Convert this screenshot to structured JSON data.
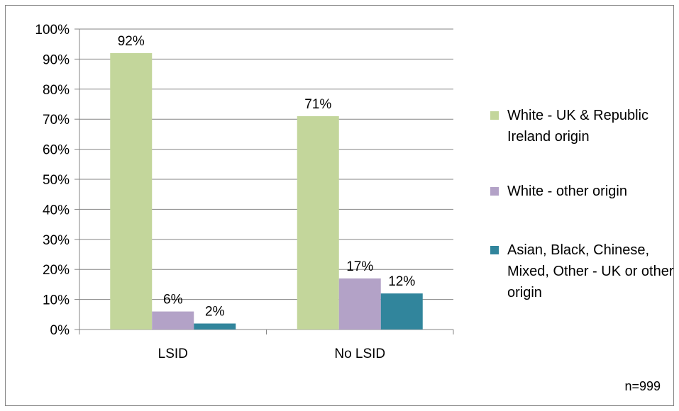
{
  "chart_data": {
    "type": "bar",
    "categories": [
      "LSID",
      "No LSID"
    ],
    "series": [
      {
        "name": "White - UK & Republic Ireland origin",
        "values": [
          92,
          71
        ],
        "color": "#c3d69b"
      },
      {
        "name": "White - other origin",
        "values": [
          6,
          17
        ],
        "color": "#b3a2c7"
      },
      {
        "name": "Asian, Black, Chinese, Mixed, Other - UK or other origin",
        "values": [
          2,
          12
        ],
        "color": "#31859c"
      }
    ],
    "data_labels": [
      [
        "92%",
        "71%"
      ],
      [
        "6%",
        "17%"
      ],
      [
        "2%",
        "12%"
      ]
    ],
    "ylim": [
      0,
      100
    ],
    "yticks": [
      0,
      10,
      20,
      30,
      40,
      50,
      60,
      70,
      80,
      90,
      100
    ],
    "ytick_labels": [
      "0%",
      "10%",
      "20%",
      "30%",
      "40%",
      "50%",
      "60%",
      "70%",
      "80%",
      "90%",
      "100%"
    ],
    "grid": true,
    "legend_position": "right",
    "note": "n=999"
  }
}
